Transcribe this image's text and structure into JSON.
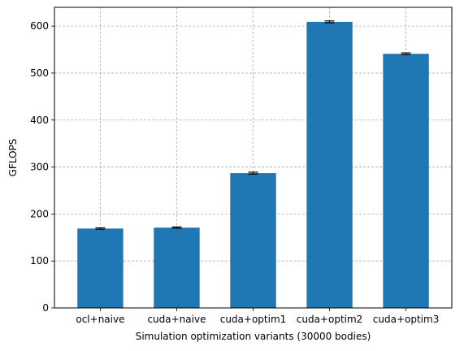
{
  "chart_data": {
    "type": "bar",
    "categories": [
      "ocl+naive",
      "cuda+naive",
      "cuda+optim1",
      "cuda+optim2",
      "cuda+optim3"
    ],
    "values": [
      169,
      171,
      287,
      609,
      541
    ],
    "errors": [
      1.5,
      1.5,
      2,
      2,
      2
    ],
    "xlabel": "Simulation optimization variants (30000 bodies)",
    "ylabel": "GFLOPS",
    "ylim": [
      0,
      640
    ],
    "yticks": [
      "0",
      "100",
      "200",
      "300",
      "400",
      "500",
      "600"
    ],
    "grid": true,
    "bar_color": "#1f77b4",
    "grid_color": "#b0b0b0"
  }
}
